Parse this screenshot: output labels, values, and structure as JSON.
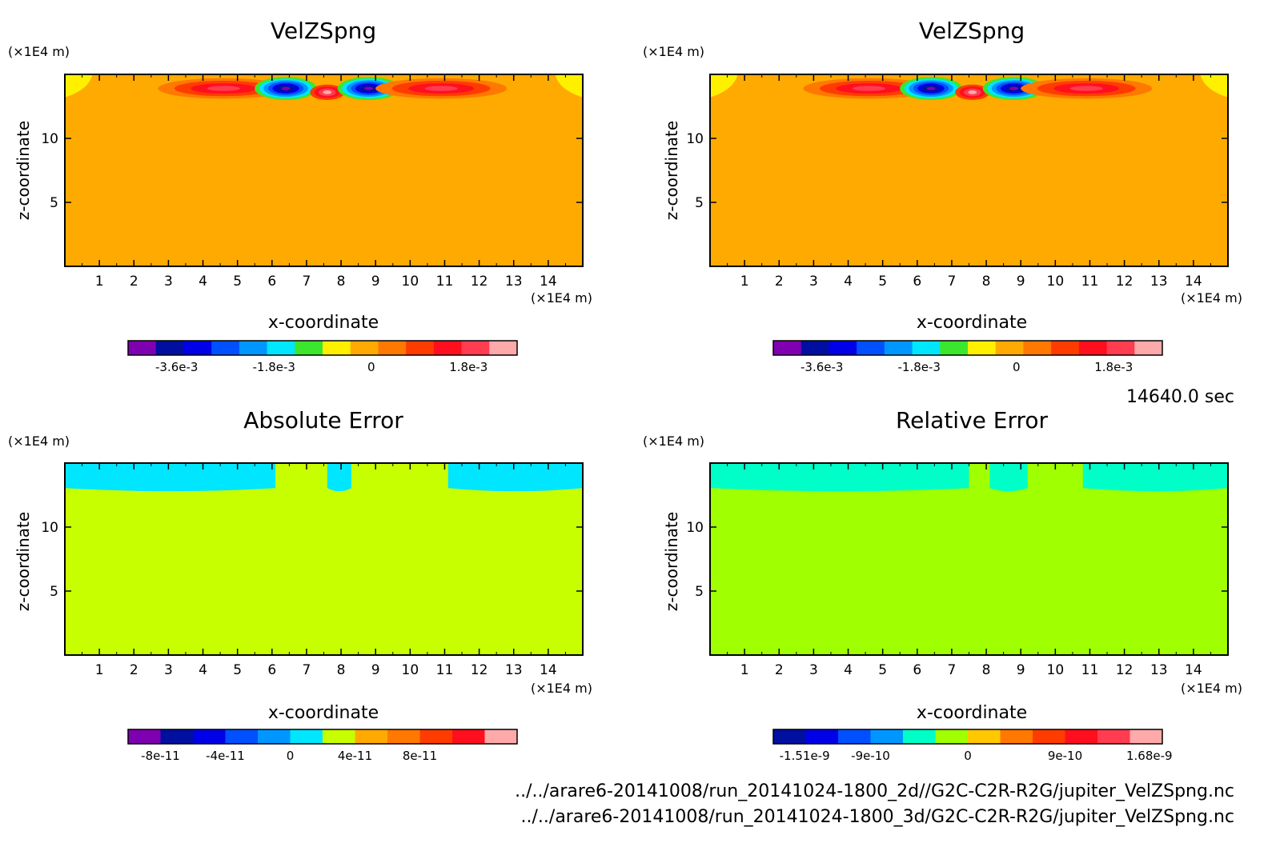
{
  "time_label": "14640.0 sec",
  "footer_paths": [
    "../../arare6-20141008/run_20141024-1800_2d//G2C-C2R-R2G/jupiter_VelZSpng.nc",
    "../../arare6-20141008/run_20141024-1800_3d/G2C-C2R-R2G/jupiter_VelZSpng.nc"
  ],
  "chart_data": [
    {
      "type": "heatmap",
      "title": "VelZSpng",
      "xlabel": "x-coordinate",
      "ylabel": "z-coordinate",
      "x_unit": "(×1E4 m)",
      "y_unit": "(×1E4 m)",
      "xlim": [
        0,
        15
      ],
      "ylim": [
        0,
        15
      ],
      "x_ticks": [
        1,
        2,
        3,
        4,
        5,
        6,
        7,
        8,
        9,
        10,
        11,
        12,
        13,
        14
      ],
      "y_ticks": [
        5,
        10
      ],
      "background_color": "#FFAA00",
      "colorbar": {
        "colors": [
          "#7F00B0",
          "#000FA0",
          "#0000E8",
          "#0050FF",
          "#0096FF",
          "#00E6FF",
          "#3CE62D",
          "#FFF000",
          "#FFAA00",
          "#FF7800",
          "#FF3C00",
          "#FF0F1E",
          "#FF3C50",
          "#FFAAAA"
        ],
        "tick_labels": [
          "-3.6e-3",
          "-1.8e-3",
          "0",
          "1.8e-3"
        ],
        "tick_values": [
          -0.0036,
          -0.0018,
          0,
          0.0018
        ],
        "range": [
          -0.0045,
          0.0027
        ]
      },
      "features": [
        {
          "x": 4.6,
          "z": 13.9,
          "rx": 1.9,
          "rz": 0.8,
          "colors": [
            "#FF7800",
            "#FF3C00",
            "#FF0F1E",
            "#FF3C50"
          ]
        },
        {
          "x": 6.4,
          "z": 13.9,
          "rx": 0.9,
          "rz": 0.9,
          "colors": [
            "#3CE62D",
            "#00E6FF",
            "#0096FF",
            "#0050FF",
            "#0000E8",
            "#000FA0",
            "#7F00B0"
          ]
        },
        {
          "x": 7.6,
          "z": 13.6,
          "rx": 0.5,
          "rz": 0.6,
          "colors": [
            "#FF3C00",
            "#FF0F1E",
            "#FF3C50",
            "#FFAAAA"
          ]
        },
        {
          "x": 8.8,
          "z": 13.9,
          "rx": 0.9,
          "rz": 0.9,
          "colors": [
            "#3CE62D",
            "#00E6FF",
            "#0096FF",
            "#0050FF",
            "#0000E8",
            "#000FA0",
            "#7F00B0"
          ]
        },
        {
          "x": 10.9,
          "z": 13.9,
          "rx": 1.9,
          "rz": 0.8,
          "colors": [
            "#FF7800",
            "#FF3C00",
            "#FF0F1E",
            "#FF3C50"
          ]
        }
      ]
    },
    {
      "type": "heatmap",
      "title": "VelZSpng",
      "xlabel": "x-coordinate",
      "ylabel": "z-coordinate",
      "x_unit": "(×1E4 m)",
      "y_unit": "(×1E4 m)",
      "xlim": [
        0,
        15
      ],
      "ylim": [
        0,
        15
      ],
      "x_ticks": [
        1,
        2,
        3,
        4,
        5,
        6,
        7,
        8,
        9,
        10,
        11,
        12,
        13,
        14
      ],
      "y_ticks": [
        5,
        10
      ],
      "background_color": "#FFAA00",
      "colorbar": {
        "colors": [
          "#7F00B0",
          "#000FA0",
          "#0000E8",
          "#0050FF",
          "#0096FF",
          "#00E6FF",
          "#3CE62D",
          "#FFF000",
          "#FFAA00",
          "#FF7800",
          "#FF3C00",
          "#FF0F1E",
          "#FF3C50",
          "#FFAAAA"
        ],
        "tick_labels": [
          "-3.6e-3",
          "-1.8e-3",
          "0",
          "1.8e-3"
        ],
        "tick_values": [
          -0.0036,
          -0.0018,
          0,
          0.0018
        ],
        "range": [
          -0.0045,
          0.0027
        ]
      },
      "features": [
        {
          "x": 4.6,
          "z": 13.9,
          "rx": 1.9,
          "rz": 0.8,
          "colors": [
            "#FF7800",
            "#FF3C00",
            "#FF0F1E",
            "#FF3C50"
          ]
        },
        {
          "x": 6.4,
          "z": 13.9,
          "rx": 0.9,
          "rz": 0.9,
          "colors": [
            "#3CE62D",
            "#00E6FF",
            "#0096FF",
            "#0050FF",
            "#0000E8",
            "#000FA0",
            "#7F00B0"
          ]
        },
        {
          "x": 7.6,
          "z": 13.6,
          "rx": 0.5,
          "rz": 0.6,
          "colors": [
            "#FF3C00",
            "#FF0F1E",
            "#FF3C50",
            "#FFAAAA"
          ]
        },
        {
          "x": 8.8,
          "z": 13.9,
          "rx": 0.9,
          "rz": 0.9,
          "colors": [
            "#3CE62D",
            "#00E6FF",
            "#0096FF",
            "#0050FF",
            "#0000E8",
            "#000FA0",
            "#7F00B0"
          ]
        },
        {
          "x": 10.9,
          "z": 13.9,
          "rx": 1.9,
          "rz": 0.8,
          "colors": [
            "#FF7800",
            "#FF3C00",
            "#FF0F1E",
            "#FF3C50"
          ]
        }
      ]
    },
    {
      "type": "heatmap",
      "title": "Absolute Error",
      "xlabel": "x-coordinate",
      "ylabel": "z-coordinate",
      "x_unit": "(×1E4 m)",
      "y_unit": "(×1E4 m)",
      "xlim": [
        0,
        15
      ],
      "ylim": [
        0,
        15
      ],
      "x_ticks": [
        1,
        2,
        3,
        4,
        5,
        6,
        7,
        8,
        9,
        10,
        11,
        12,
        13,
        14
      ],
      "y_ticks": [
        5,
        10
      ],
      "background_color": "#C8FF00",
      "top_band": {
        "z_from": 12.8,
        "color": "#00E6FF",
        "gaps": [
          [
            6.1,
            7.6
          ],
          [
            8.3,
            11.1
          ]
        ]
      },
      "colorbar": {
        "colors": [
          "#7F00B0",
          "#000FA0",
          "#0000E8",
          "#0050FF",
          "#0096FF",
          "#00E6FF",
          "#C8FF00",
          "#FFAA00",
          "#FF7800",
          "#FF3C00",
          "#FF0F1E",
          "#FFAAAA"
        ],
        "tick_labels": [
          "-8e-11",
          "-4e-11",
          "0",
          "4e-11",
          "8e-11"
        ],
        "tick_values": [
          -8e-11,
          -4e-11,
          0,
          4e-11,
          8e-11
        ],
        "range": [
          -1e-10,
          1.4e-10
        ]
      }
    },
    {
      "type": "heatmap",
      "title": "Relative Error",
      "xlabel": "x-coordinate",
      "ylabel": "z-coordinate",
      "x_unit": "(×1E4 m)",
      "y_unit": "(×1E4 m)",
      "xlim": [
        0,
        15
      ],
      "ylim": [
        0,
        15
      ],
      "x_ticks": [
        1,
        2,
        3,
        4,
        5,
        6,
        7,
        8,
        9,
        10,
        11,
        12,
        13,
        14
      ],
      "y_ticks": [
        5,
        10
      ],
      "background_color": "#A0FF00",
      "top_band": {
        "z_from": 12.8,
        "color": "#00FFC8",
        "gaps": [
          [
            7.5,
            8.1
          ],
          [
            9.2,
            10.8
          ]
        ]
      },
      "colorbar": {
        "colors": [
          "#000FA0",
          "#0000E8",
          "#0050FF",
          "#0096FF",
          "#00FFC8",
          "#A0FF00",
          "#FFC800",
          "#FF7800",
          "#FF3C00",
          "#FF0F1E",
          "#FF3C50",
          "#FFAAAA"
        ],
        "tick_labels": [
          "-1.51e-9",
          "-9e-10",
          "0",
          "9e-10",
          "1.68e-9"
        ],
        "tick_values": [
          -1.51e-09,
          -9e-10,
          0,
          9e-10,
          1.68e-09
        ],
        "range": [
          -1.8e-09,
          1.8e-09
        ]
      }
    }
  ]
}
